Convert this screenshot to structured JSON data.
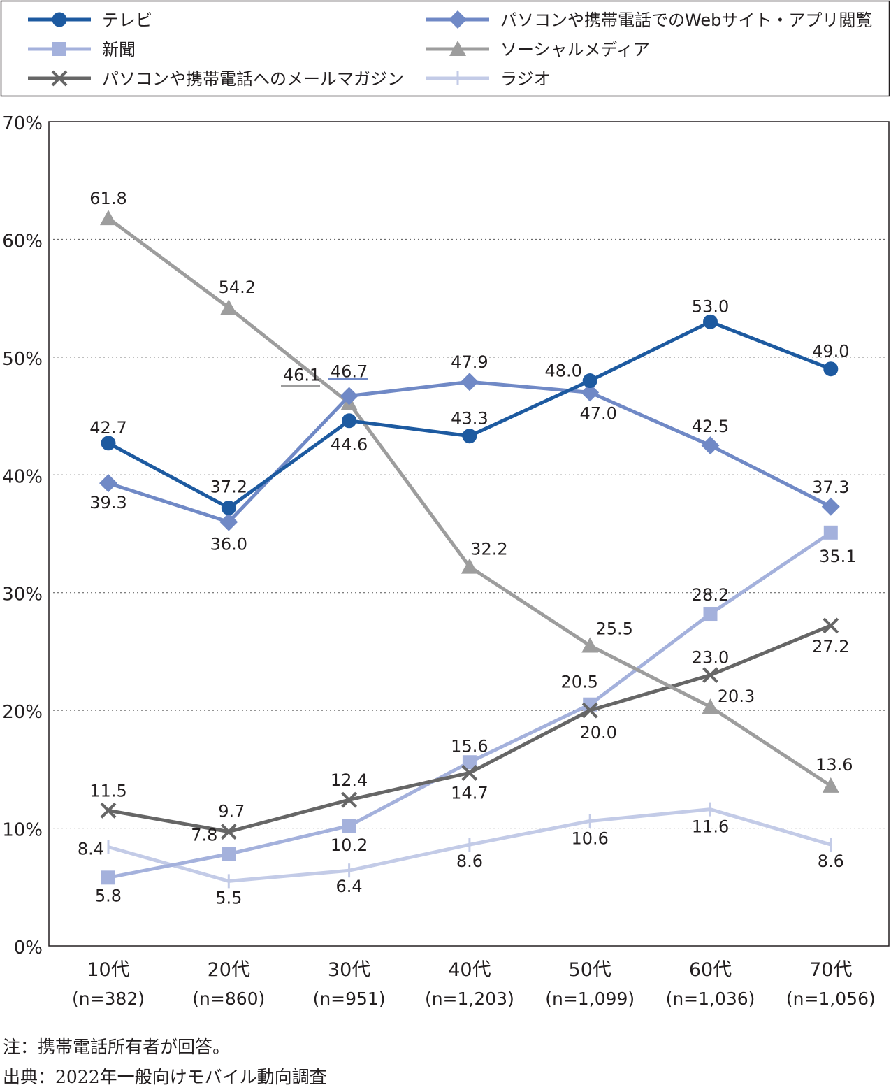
{
  "chart_data": {
    "type": "line",
    "categories": [
      "10代",
      "20代",
      "30代",
      "40代",
      "50代",
      "60代",
      "70代"
    ],
    "category_notes": [
      "(n=382)",
      "(n=860)",
      "(n=951)",
      "(n=1,203)",
      "(n=1,099)",
      "(n=1,036)",
      "(n=1,056)"
    ],
    "ylim": [
      0,
      70
    ],
    "yticks": [
      "0%",
      "10%",
      "20%",
      "30%",
      "40%",
      "50%",
      "60%",
      "70%"
    ],
    "grid": true,
    "legend_position": "top",
    "series": [
      {
        "name": "テレビ",
        "marker": "circle",
        "color": "#1d5aa0",
        "values": [
          42.7,
          37.2,
          44.6,
          43.3,
          48.0,
          53.0,
          49.0
        ],
        "labels": [
          "42.7",
          "37.2",
          "44.6",
          "43.3",
          "48.0",
          "53.0",
          "49.0"
        ]
      },
      {
        "name": "パソコンや携帯電話でのWebサイト・アプリ閲覧",
        "marker": "diamond",
        "color": "#7089c6",
        "values": [
          39.3,
          36.0,
          46.7,
          47.9,
          47.0,
          42.5,
          37.3
        ],
        "labels": [
          "39.3",
          "36.0",
          "46.7",
          "47.9",
          "47.0",
          "42.5",
          "37.3"
        ]
      },
      {
        "name": "新聞",
        "marker": "square",
        "color": "#a4b1dc",
        "values": [
          5.8,
          7.8,
          10.2,
          15.6,
          20.5,
          28.2,
          35.1
        ],
        "labels": [
          "5.8",
          "7.8",
          "10.2",
          "15.6",
          "20.5",
          "28.2",
          "35.1"
        ]
      },
      {
        "name": "ソーシャルメディア",
        "marker": "triangle",
        "color": "#9d9d9d",
        "values": [
          61.8,
          54.2,
          46.1,
          32.2,
          25.5,
          20.3,
          13.6
        ],
        "labels": [
          "61.8",
          "54.2",
          "46.1",
          "32.2",
          "25.5",
          "20.3",
          "13.6"
        ]
      },
      {
        "name": "パソコンや携帯電話へのメールマガジン",
        "marker": "cross",
        "color": "#666666",
        "values": [
          11.5,
          9.7,
          12.4,
          14.7,
          20.0,
          23.0,
          27.2
        ],
        "labels": [
          "11.5",
          "9.7",
          "12.4",
          "14.7",
          "20.0",
          "23.0",
          "27.2"
        ]
      },
      {
        "name": "ラジオ",
        "marker": "bar",
        "color": "#c3cbe7",
        "values": [
          8.4,
          5.5,
          6.4,
          8.6,
          10.6,
          11.6,
          8.6
        ],
        "labels": [
          "8.4",
          "5.5",
          "6.4",
          "8.6",
          "10.6",
          "11.6",
          "8.6"
        ]
      }
    ]
  },
  "footnotes": {
    "note": "注：携帯電話所有者が回答。",
    "source": "出典：2022年一般向けモバイル動向調査"
  }
}
